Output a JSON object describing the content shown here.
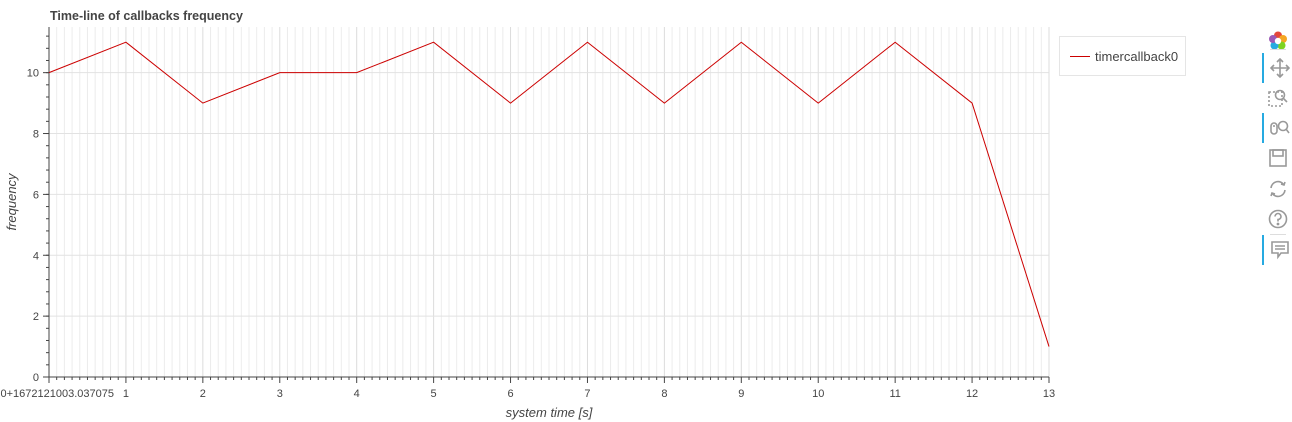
{
  "chart_data": {
    "type": "line",
    "title": "Time-line of callbacks frequency",
    "xlabel": "system time [s]",
    "ylabel": "frequency",
    "x_offset_label": "0+1672121003.037075",
    "x_ticks": [
      1,
      2,
      3,
      4,
      5,
      6,
      7,
      8,
      9,
      10,
      11,
      12,
      13
    ],
    "y_ticks": [
      0,
      2,
      4,
      6,
      8,
      10
    ],
    "xlim": [
      0,
      13
    ],
    "ylim": [
      0,
      11.5
    ],
    "grid": true,
    "legend_position": "right, outside plot",
    "series": [
      {
        "name": "timercallback0",
        "color": "#cc0000",
        "x": [
          0,
          1,
          2,
          3,
          4,
          5,
          6,
          7,
          8,
          9,
          10,
          11,
          12,
          13
        ],
        "y": [
          10,
          11,
          9,
          10,
          10,
          11,
          9,
          11,
          9,
          11,
          9,
          11,
          9,
          1
        ]
      }
    ]
  },
  "legend": {
    "label": "timercallback0"
  },
  "toolbar": {
    "tools": [
      "bokeh-logo-icon",
      "pan-icon",
      "box-zoom-icon",
      "wheel-zoom-icon",
      "save-icon",
      "reset-icon",
      "help-icon",
      "hover-icon"
    ],
    "active": [
      "pan-icon",
      "wheel-zoom-icon",
      "hover-icon"
    ]
  }
}
